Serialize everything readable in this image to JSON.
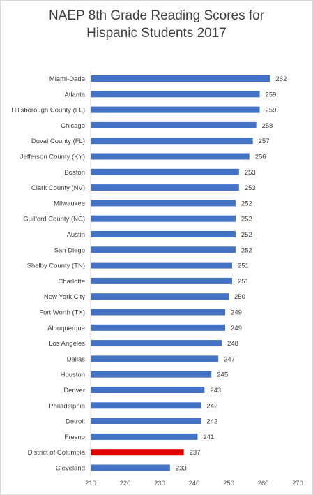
{
  "chart_data": {
    "type": "bar",
    "orientation": "horizontal",
    "title_lines": [
      "NAEP 8th Grade Reading Scores for",
      "Hispanic Students 2017"
    ],
    "categories": [
      "Miami-Dade",
      "Atlanta",
      "Hillsborough County (FL)",
      "Chicago",
      "Duval County (FL)",
      "Jefferson County (KY)",
      "Boston",
      "Clark County (NV)",
      "Milwaukee",
      "Guilford County (NC)",
      "Austin",
      "San Diego",
      "Shelby County (TN)",
      "Charlotte",
      "New York City",
      "Fort Worth (TX)",
      "Albuquerque",
      "Los Angeles",
      "Dallas",
      "Houston",
      "Denver",
      "Philadelphia",
      "Detroit",
      "Fresno",
      "District of Columbia",
      "Cleveland"
    ],
    "values": [
      262,
      259,
      259,
      258,
      257,
      256,
      253,
      253,
      252,
      252,
      252,
      252,
      251,
      251,
      250,
      249,
      249,
      248,
      247,
      245,
      243,
      242,
      242,
      241,
      237,
      233
    ],
    "xlim": [
      210,
      270
    ],
    "xticks": [
      210,
      220,
      230,
      240,
      250,
      260,
      270
    ],
    "xlabel": "",
    "ylabel": "",
    "grid": false,
    "legend": "none",
    "bar_color": "#4472c4",
    "highlight_category": "District of Columbia",
    "highlight_color": "#e00000"
  }
}
